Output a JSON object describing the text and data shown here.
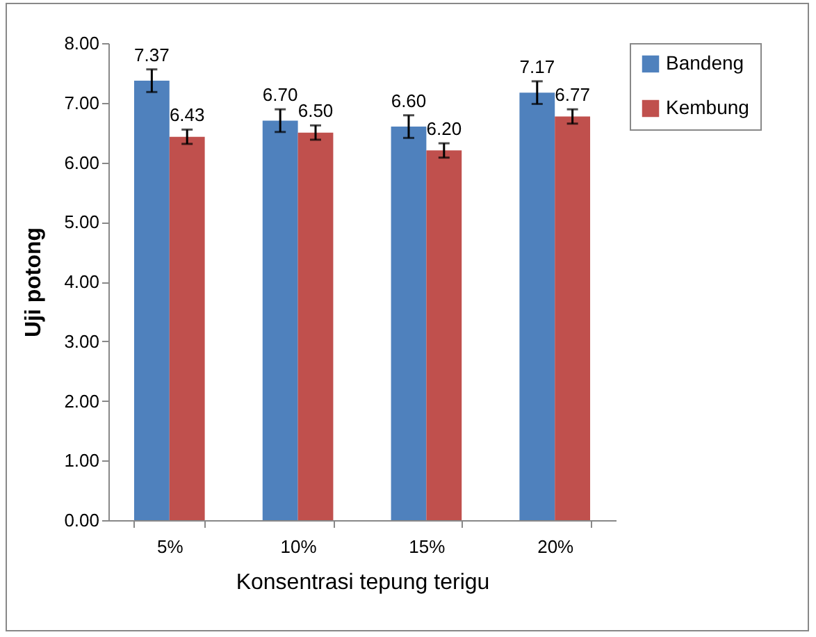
{
  "chart_data": {
    "type": "bar",
    "xlabel": "Konsentrasi tepung terigu",
    "ylabel": "Uji potong",
    "categories": [
      "5%",
      "10%",
      "15%",
      "20%"
    ],
    "series": [
      {
        "name": "Bandeng",
        "color": "#4f81bd",
        "values": [
          7.37,
          6.7,
          6.6,
          7.17
        ],
        "errors": [
          0.19,
          0.19,
          0.19,
          0.19
        ],
        "value_labels": [
          "7.37",
          "6.70",
          "6.60",
          "7.17"
        ]
      },
      {
        "name": "Kembung",
        "color": "#c0504d",
        "values": [
          6.43,
          6.5,
          6.2,
          6.77
        ],
        "errors": [
          0.12,
          0.12,
          0.12,
          0.12
        ],
        "value_labels": [
          "6.43",
          "6.50",
          "6.20",
          "6.77"
        ]
      }
    ],
    "ylim": [
      0,
      8
    ],
    "yticks": [
      {
        "value": 0,
        "label": "0.00"
      },
      {
        "value": 1,
        "label": "1.00"
      },
      {
        "value": 2,
        "label": "2.00"
      },
      {
        "value": 3,
        "label": "3.00"
      },
      {
        "value": 4,
        "label": "4.00"
      },
      {
        "value": 5,
        "label": "5.00"
      },
      {
        "value": 6,
        "label": "6.00"
      },
      {
        "value": 7,
        "label": "7.00"
      },
      {
        "value": 8,
        "label": "8.00"
      }
    ],
    "grid": false,
    "legend": "right"
  }
}
